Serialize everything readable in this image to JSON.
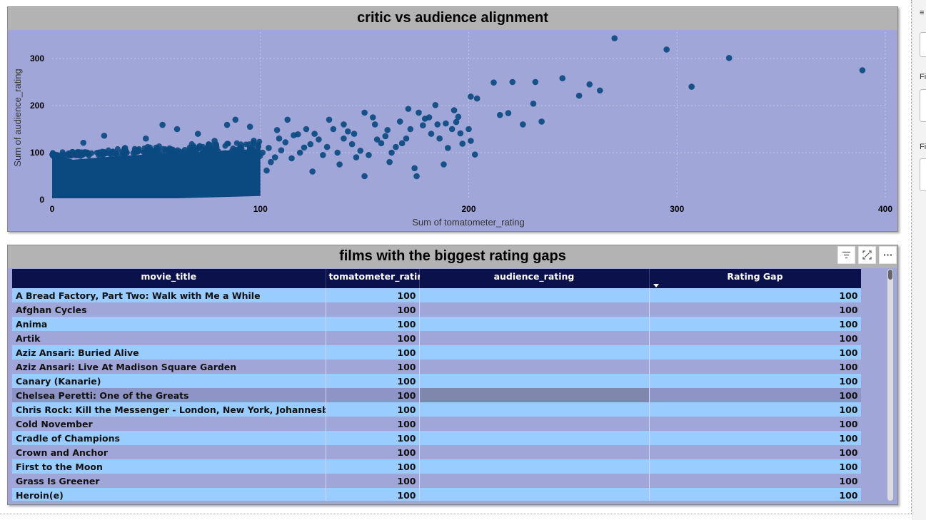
{
  "colors": {
    "plot_bg": "#a1a6d9",
    "title_bg": "#b3b3b3",
    "marker": "#0a4a80",
    "header_bg": "#0b114a",
    "row_even": "#99ccff",
    "row_odd": "#a1a6d9"
  },
  "scatter": {
    "title": "critic vs audience alignment"
  },
  "chart_data": {
    "type": "scatter",
    "title": "critic vs audience alignment",
    "xlabel": "Sum of tomatometer_rating",
    "ylabel": "Sum of audience_rating",
    "xlim": [
      0,
      400
    ],
    "ylim": [
      0,
      350
    ],
    "xticks": [
      0,
      100,
      200,
      300,
      400
    ],
    "yticks": [
      0,
      100,
      200,
      300
    ],
    "grid": true,
    "dense_band": {
      "x_range": [
        0,
        100
      ],
      "y_range": [
        0,
        100
      ],
      "description": "thousands of overlapping points"
    },
    "points": [
      [
        270,
        343
      ],
      [
        295,
        319
      ],
      [
        325,
        301
      ],
      [
        389,
        275
      ],
      [
        307,
        240
      ],
      [
        245,
        258
      ],
      [
        221,
        250
      ],
      [
        212,
        249
      ],
      [
        232,
        250
      ],
      [
        258,
        245
      ],
      [
        253,
        221
      ],
      [
        263,
        232
      ],
      [
        201,
        219
      ],
      [
        204,
        215
      ],
      [
        231,
        204
      ],
      [
        235,
        166
      ],
      [
        226,
        160
      ],
      [
        219,
        184
      ],
      [
        215,
        180
      ],
      [
        193,
        190
      ],
      [
        184,
        201
      ],
      [
        171,
        193
      ],
      [
        150,
        185
      ],
      [
        167,
        166
      ],
      [
        179,
        172
      ],
      [
        200,
        150
      ],
      [
        201,
        125
      ],
      [
        203,
        96
      ],
      [
        197,
        119
      ],
      [
        190,
        110
      ],
      [
        188,
        75
      ],
      [
        174,
        67
      ],
      [
        175,
        50
      ],
      [
        162,
        80
      ],
      [
        150,
        50
      ],
      [
        140,
        130
      ],
      [
        130,
        95
      ],
      [
        125,
        60
      ],
      [
        121,
        111
      ],
      [
        116,
        137
      ],
      [
        110,
        105
      ],
      [
        108,
        148
      ],
      [
        105,
        80
      ],
      [
        103,
        62
      ],
      [
        113,
        170
      ],
      [
        118,
        139
      ],
      [
        145,
        140
      ],
      [
        155,
        160
      ],
      [
        160,
        135
      ],
      [
        168,
        120
      ],
      [
        182,
        140
      ],
      [
        185,
        160
      ],
      [
        192,
        150
      ],
      [
        196,
        141
      ],
      [
        140,
        160
      ],
      [
        135,
        150
      ],
      [
        128,
        128
      ],
      [
        122,
        150
      ],
      [
        148,
        104
      ],
      [
        158,
        120
      ],
      [
        165,
        112
      ],
      [
        172,
        150
      ],
      [
        178,
        158
      ],
      [
        186,
        130
      ],
      [
        194,
        165
      ],
      [
        144,
        118
      ],
      [
        132,
        112
      ],
      [
        138,
        75
      ],
      [
        152,
        95
      ],
      [
        112,
        122
      ],
      [
        107,
        90
      ],
      [
        104,
        110
      ],
      [
        119,
        100
      ],
      [
        126,
        140
      ],
      [
        133,
        170
      ],
      [
        142,
        145
      ],
      [
        154,
        175
      ],
      [
        161,
        148
      ],
      [
        176,
        185
      ],
      [
        181,
        175
      ],
      [
        189,
        162
      ],
      [
        195,
        176
      ],
      [
        170,
        130
      ],
      [
        163,
        100
      ],
      [
        156,
        128
      ],
      [
        146,
        90
      ],
      [
        137,
        100
      ],
      [
        124,
        118
      ],
      [
        115,
        88
      ],
      [
        109,
        130
      ],
      [
        101,
        100
      ],
      [
        53,
        159
      ],
      [
        25,
        136
      ],
      [
        15,
        121
      ],
      [
        84,
        159
      ],
      [
        88,
        170
      ],
      [
        60,
        150
      ],
      [
        70,
        140
      ],
      [
        95,
        155
      ],
      [
        45,
        130
      ],
      [
        35,
        110
      ],
      [
        78,
        125
      ]
    ]
  },
  "table": {
    "title": "films with the biggest rating gaps",
    "columns": [
      "movie_title",
      "tomatometer_rating",
      "audience_rating",
      "Rating Gap"
    ],
    "sorted_column": "Rating Gap",
    "rows": [
      [
        "A Bread Factory, Part Two: Walk with Me a While",
        "100",
        "",
        "100"
      ],
      [
        "Afghan Cycles",
        "100",
        "",
        "100"
      ],
      [
        "Anima",
        "100",
        "",
        "100"
      ],
      [
        "Artik",
        "100",
        "",
        "100"
      ],
      [
        "Aziz Ansari: Buried Alive",
        "100",
        "",
        "100"
      ],
      [
        "Aziz Ansari: Live At Madison Square Garden",
        "100",
        "",
        "100"
      ],
      [
        "Canary (Kanarie)",
        "100",
        "",
        "100"
      ],
      [
        "Chelsea Peretti: One of the Greats",
        "100",
        "",
        "100"
      ],
      [
        "Chris Rock: Kill the Messenger - London, New York, Johannesburg",
        "100",
        "",
        "100"
      ],
      [
        "Cold November",
        "100",
        "",
        "100"
      ],
      [
        "Cradle of Champions",
        "100",
        "",
        "100"
      ],
      [
        "Crown and Anchor",
        "100",
        "",
        "100"
      ],
      [
        "First to the Moon",
        "100",
        "",
        "100"
      ],
      [
        "Grass Is Greener",
        "100",
        "",
        "100"
      ],
      [
        "Heroin(e)",
        "100",
        "",
        "100"
      ]
    ],
    "highlighted_row": 7,
    "header_icons": [
      "filter-icon",
      "focus-mode-icon",
      "more-options-icon"
    ]
  },
  "side_pane": {
    "labels": [
      "Fi",
      "Fi"
    ]
  }
}
